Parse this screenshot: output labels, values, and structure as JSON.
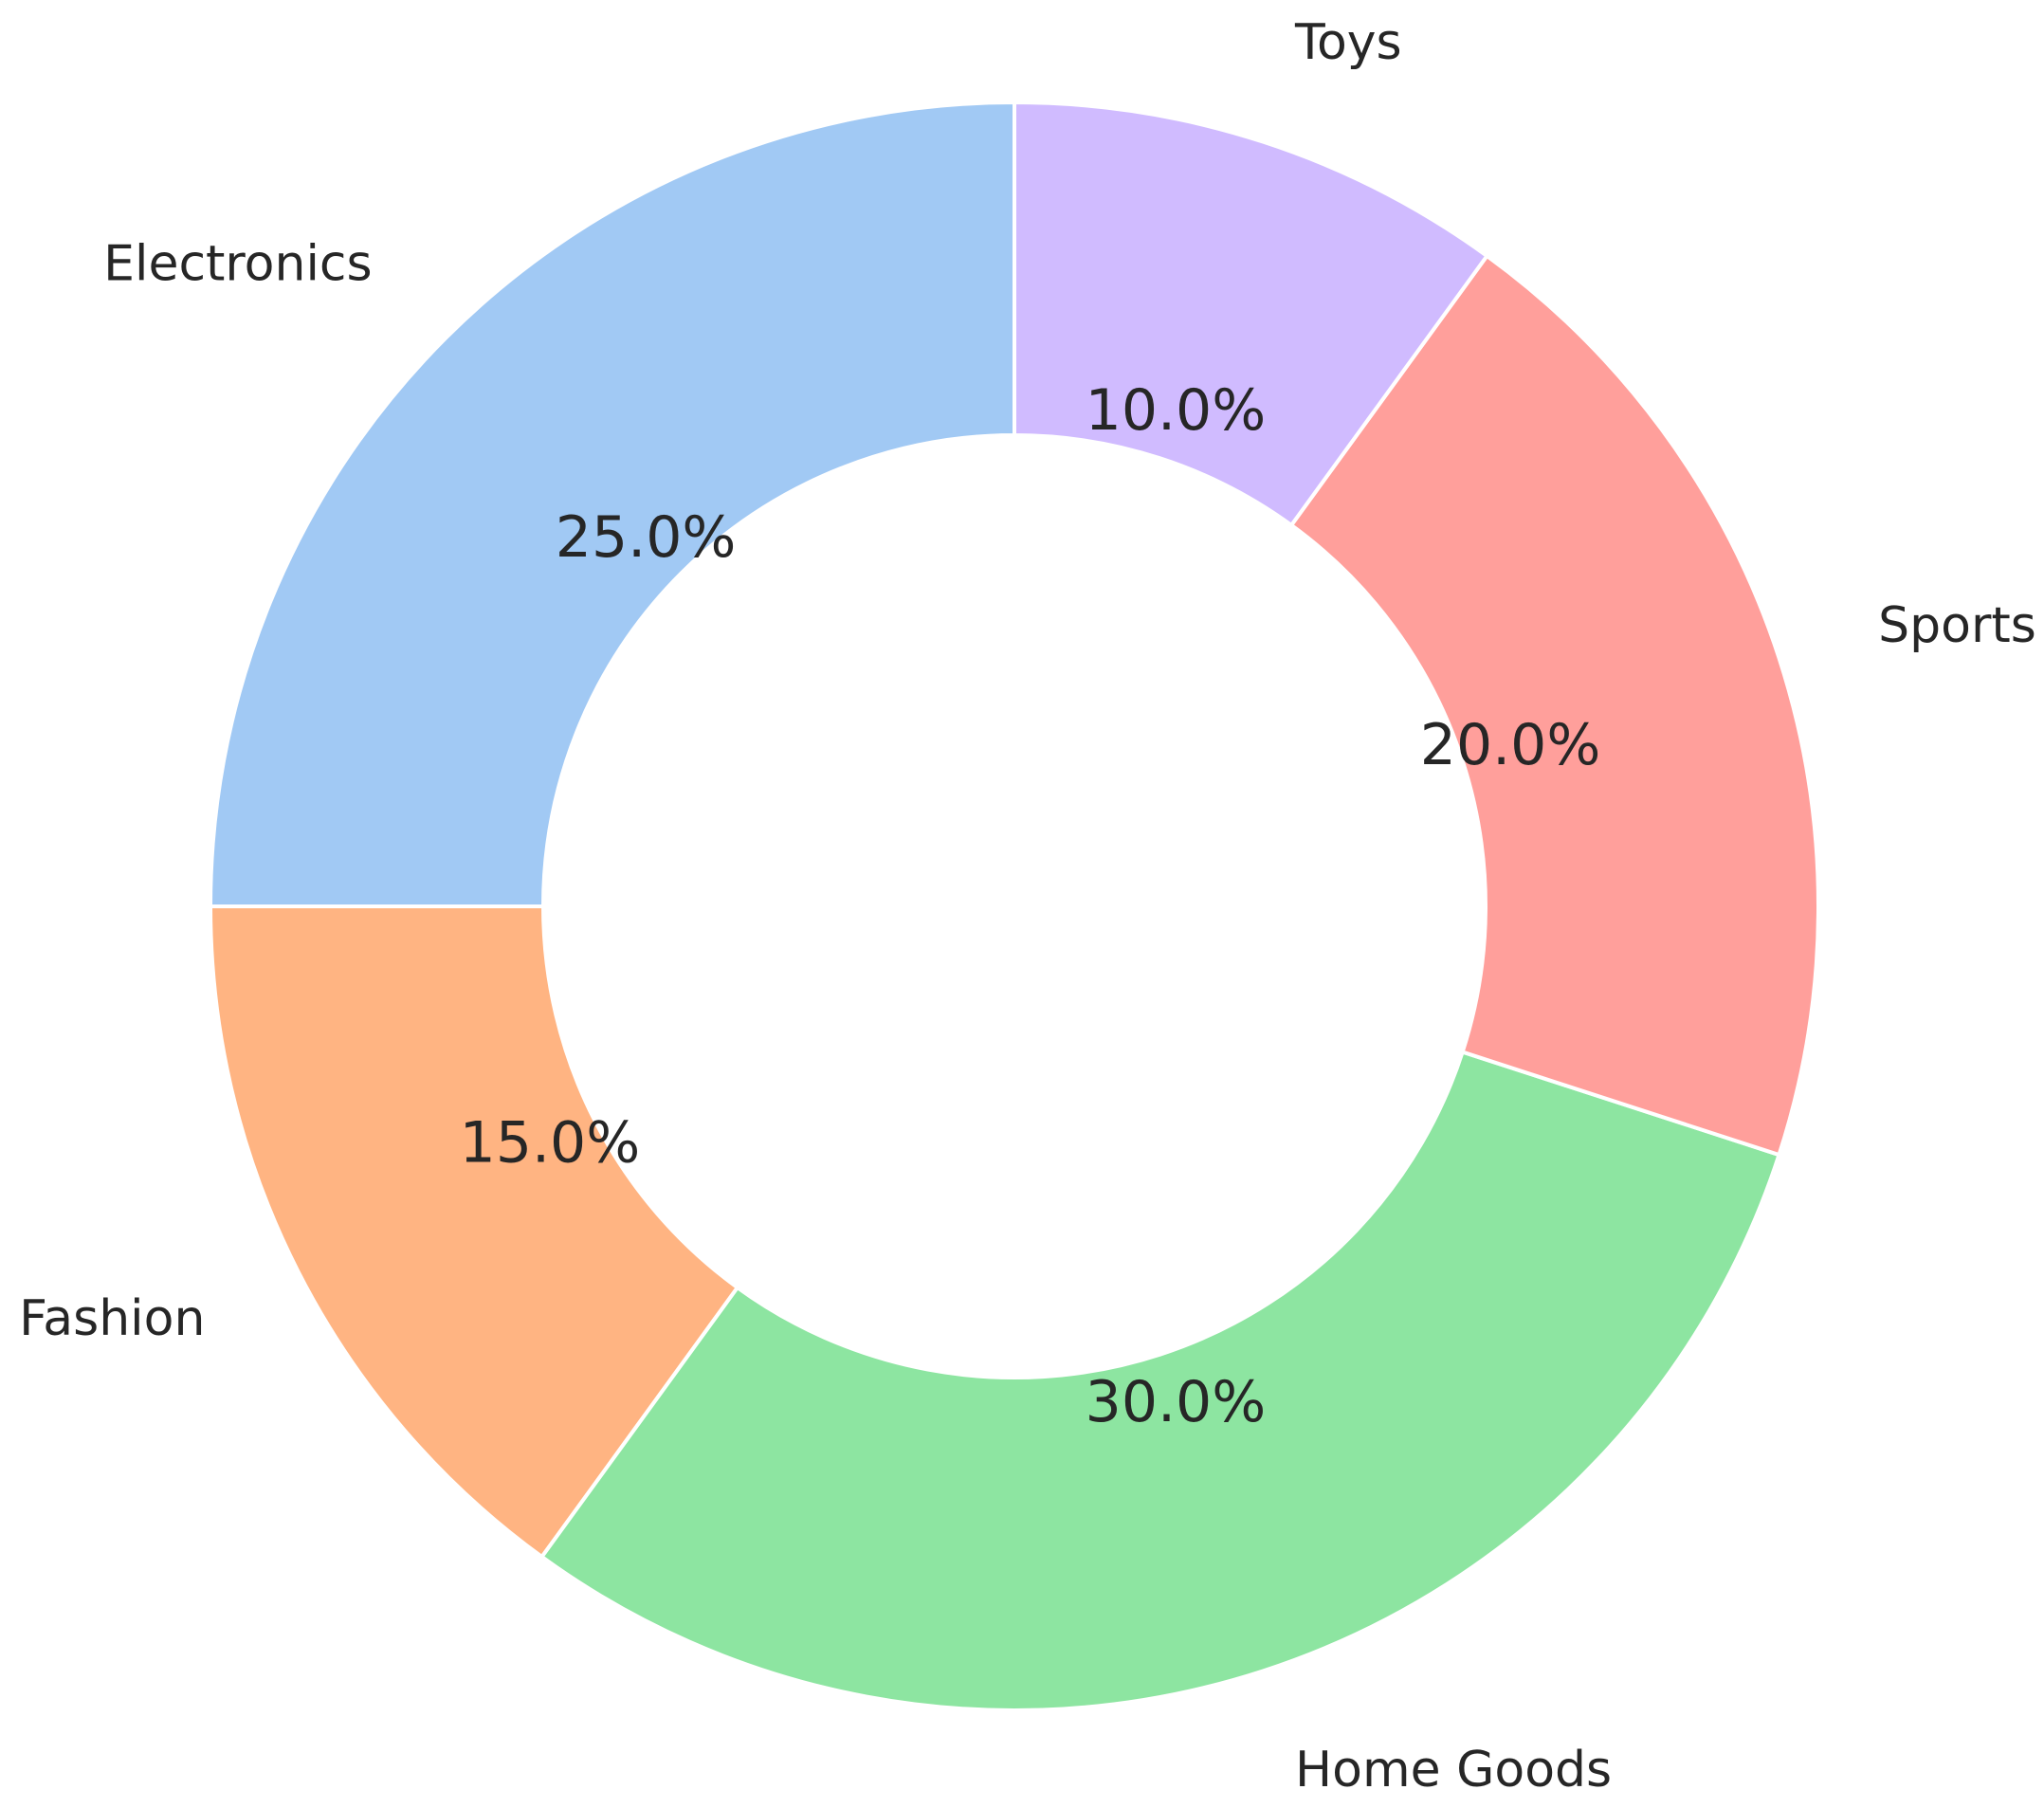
{
  "chart_data": {
    "type": "pie",
    "variant": "donut",
    "title": "",
    "start_angle_deg": 90,
    "direction": "counterclockwise",
    "slices": [
      {
        "label": "Electronics",
        "value": 25.0,
        "pct_text": "25.0%",
        "color": "#a1c9f4"
      },
      {
        "label": "Fashion",
        "value": 15.0,
        "pct_text": "15.0%",
        "color": "#ffb482"
      },
      {
        "label": "Home Goods",
        "value": 30.0,
        "pct_text": "30.0%",
        "color": "#8de5a1"
      },
      {
        "label": "Sports",
        "value": 20.0,
        "pct_text": "20.0%",
        "color": "#ff9f9b"
      },
      {
        "label": "Toys",
        "value": 10.0,
        "pct_text": "10.0%",
        "color": "#d0bbff"
      }
    ]
  }
}
